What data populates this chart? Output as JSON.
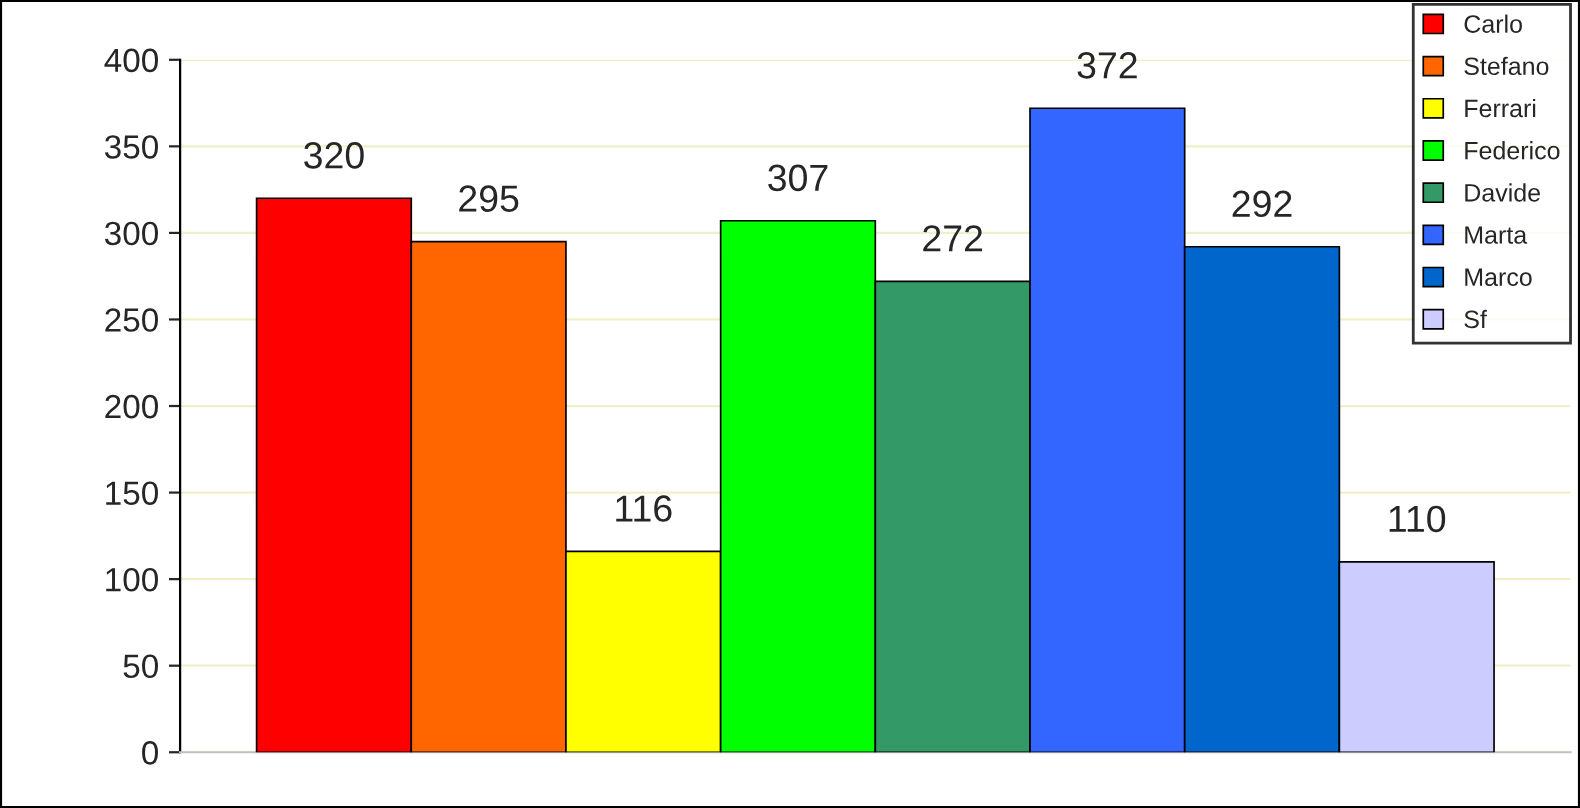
{
  "chart_data": {
    "type": "bar",
    "categories": [
      null
    ],
    "series": [
      {
        "name": "Carlo",
        "color": "#ff0000",
        "values": [
          320
        ]
      },
      {
        "name": "Stefano",
        "color": "#ff6600",
        "values": [
          295
        ]
      },
      {
        "name": "Ferrari",
        "color": "#ffff00",
        "values": [
          116
        ]
      },
      {
        "name": "Federico",
        "color": "#00ff00",
        "values": [
          307
        ]
      },
      {
        "name": "Davide",
        "color": "#339966",
        "values": [
          272
        ]
      },
      {
        "name": "Marta",
        "color": "#3366ff",
        "values": [
          372
        ]
      },
      {
        "name": "Marco",
        "color": "#0066cc",
        "values": [
          292
        ]
      },
      {
        "name": "Sf",
        "color": "#ccccff",
        "values": [
          110
        ]
      }
    ],
    "ylim": [
      0,
      400
    ],
    "yticks": [
      0,
      50,
      100,
      150,
      200,
      250,
      300,
      350,
      400
    ],
    "grid": "y",
    "legend": "top right",
    "data_labels": true
  }
}
